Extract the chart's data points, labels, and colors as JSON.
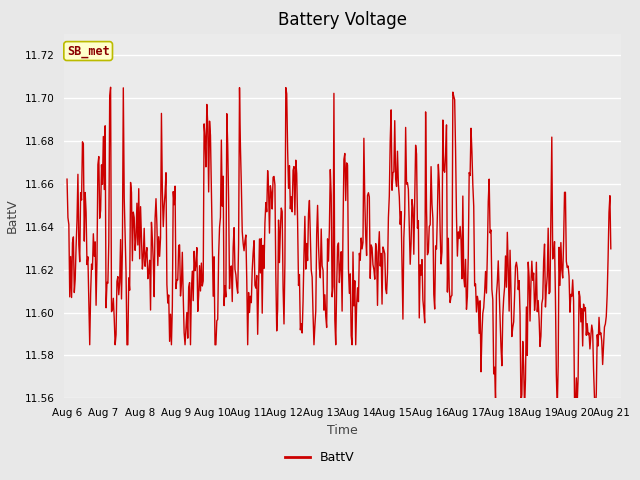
{
  "title": "Battery Voltage",
  "xlabel": "Time",
  "ylabel": "BattV",
  "ylim": [
    11.56,
    11.73
  ],
  "yticks": [
    11.56,
    11.58,
    11.6,
    11.62,
    11.64,
    11.66,
    11.68,
    11.7,
    11.72
  ],
  "line_color": "#cc0000",
  "line_width": 1.0,
  "bg_color": "#e8e8e8",
  "inner_bg_color": "#ebebeb",
  "legend_label": "BattV",
  "annotation_text": "SB_met",
  "annotation_bg": "#ffffcc",
  "annotation_border": "#bbbb00",
  "annotation_text_color": "#8b0000",
  "x_tick_labels": [
    "Aug 6",
    "Aug 7",
    "Aug 8",
    "Aug 9",
    "Aug 10",
    "Aug 11",
    "Aug 12",
    "Aug 13",
    "Aug 14",
    "Aug 15",
    "Aug 16",
    "Aug 17",
    "Aug 18",
    "Aug 19",
    "Aug 20",
    "Aug 21"
  ],
  "title_fontsize": 12,
  "tick_fontsize": 7.5,
  "label_fontsize": 9
}
